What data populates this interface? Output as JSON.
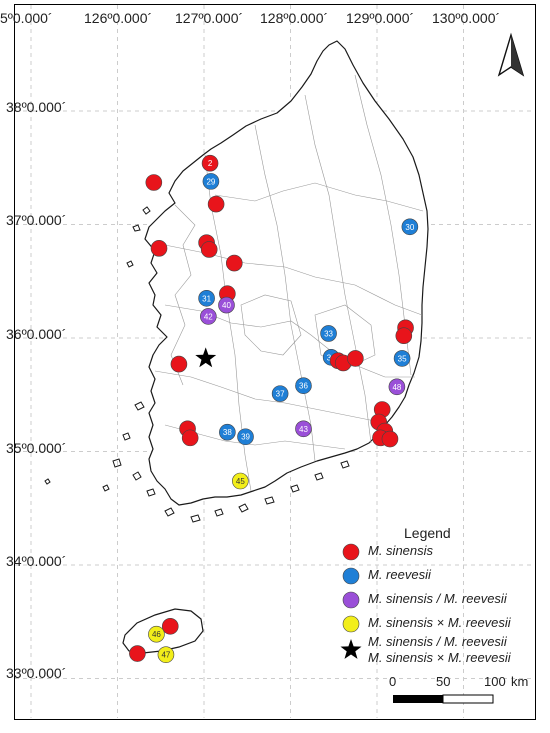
{
  "lon_labels": [
    "5º0.000´",
    "126º0.000´",
    "127º0.000´",
    "128º0.000´",
    "129º0.000´",
    "130º0.000´"
  ],
  "lat_labels": [
    "38º0.000´",
    "37º0.000´",
    "36º0.000´",
    "35º0.000´",
    "34º0.000´",
    "33º0.000´"
  ],
  "legend": {
    "title": "Legend",
    "items": [
      {
        "label": "M. sinensis",
        "color": "#e8141b",
        "symbol": "circle"
      },
      {
        "label": "M. reevesii",
        "color": "#1f7fd6",
        "symbol": "circle"
      },
      {
        "label": "M. sinensis / M. reevesii",
        "color": "#9a4fd8",
        "symbol": "circle"
      },
      {
        "label": "M. sinensis × M. reevesii",
        "color": "#f2ee1a",
        "symbol": "circle"
      },
      {
        "label": "M. sinensis / M. reevesii",
        "label2": "M. sinensis × M. reevesii",
        "color": "#000000",
        "symbol": "star"
      }
    ]
  },
  "scale_bar": {
    "labels": [
      "0",
      "50",
      "100"
    ],
    "unit": "km"
  },
  "north_arrow": "north-arrow-icon",
  "sites": [
    {
      "label": "2",
      "type": "sinensis",
      "lon": 127.07,
      "lat": 37.54
    },
    {
      "label": "",
      "type": "sinensis",
      "lon": 126.42,
      "lat": 37.37
    },
    {
      "label": "29",
      "type": "reevesii",
      "lon": 127.08,
      "lat": 37.38
    },
    {
      "label": "",
      "type": "sinensis",
      "lon": 127.14,
      "lat": 37.18
    },
    {
      "label": "",
      "type": "sinensis",
      "lon": 126.48,
      "lat": 36.79
    },
    {
      "label": "",
      "type": "sinensis",
      "lon": 127.03,
      "lat": 36.84
    },
    {
      "label": "",
      "type": "sinensis",
      "lon": 127.06,
      "lat": 36.78
    },
    {
      "label": "",
      "type": "sinensis",
      "lon": 127.35,
      "lat": 36.66
    },
    {
      "label": "",
      "type": "sinensis",
      "lon": 127.27,
      "lat": 36.39
    },
    {
      "label": "31",
      "type": "reevesii",
      "lon": 127.03,
      "lat": 36.35
    },
    {
      "label": "40",
      "type": "sinensis_reevesii",
      "lon": 127.26,
      "lat": 36.29
    },
    {
      "label": "42",
      "type": "sinensis_reevesii",
      "lon": 127.05,
      "lat": 36.19
    },
    {
      "label": "30",
      "type": "reevesii",
      "lon": 129.38,
      "lat": 36.98
    },
    {
      "label": "",
      "type": "sinensis",
      "lon": 129.33,
      "lat": 36.09
    },
    {
      "label": "",
      "type": "sinensis",
      "lon": 129.31,
      "lat": 36.02
    },
    {
      "label": "33",
      "type": "reevesii",
      "lon": 128.44,
      "lat": 36.04
    },
    {
      "label": "34",
      "type": "reevesii",
      "lon": 128.47,
      "lat": 35.83
    },
    {
      "label": "",
      "type": "sinensis",
      "lon": 128.55,
      "lat": 35.8
    },
    {
      "label": "",
      "type": "sinensis",
      "lon": 128.61,
      "lat": 35.78
    },
    {
      "label": "",
      "type": "sinensis",
      "lon": 128.75,
      "lat": 35.82
    },
    {
      "label": "35",
      "type": "reevesii",
      "lon": 129.29,
      "lat": 35.82
    },
    {
      "label": "",
      "type": "sinensis",
      "lon": 126.71,
      "lat": 35.77
    },
    {
      "label": "36",
      "type": "reevesii",
      "lon": 128.15,
      "lat": 35.58
    },
    {
      "label": "37",
      "type": "reevesii",
      "lon": 127.88,
      "lat": 35.51
    },
    {
      "label": "48",
      "type": "sinensis_reevesii",
      "lon": 129.23,
      "lat": 35.57
    },
    {
      "label": "",
      "type": "sinensis",
      "lon": 129.06,
      "lat": 35.37
    },
    {
      "label": "",
      "type": "sinensis",
      "lon": 129.02,
      "lat": 35.26
    },
    {
      "label": "",
      "type": "sinensis",
      "lon": 129.09,
      "lat": 35.18
    },
    {
      "label": "",
      "type": "sinensis",
      "lon": 129.04,
      "lat": 35.12
    },
    {
      "label": "",
      "type": "sinensis",
      "lon": 129.15,
      "lat": 35.11
    },
    {
      "label": "",
      "type": "sinensis",
      "lon": 126.81,
      "lat": 35.2
    },
    {
      "label": "",
      "type": "sinensis",
      "lon": 126.84,
      "lat": 35.12
    },
    {
      "label": "38",
      "type": "reevesii",
      "lon": 127.27,
      "lat": 35.17
    },
    {
      "label": "39",
      "type": "reevesii",
      "lon": 127.48,
      "lat": 35.13
    },
    {
      "label": "43",
      "type": "sinensis_reevesii",
      "lon": 128.15,
      "lat": 35.2
    },
    {
      "label": "45",
      "type": "hybrid",
      "lon": 127.42,
      "lat": 34.74
    },
    {
      "label": "",
      "type": "sinensis",
      "lon": 126.61,
      "lat": 33.46
    },
    {
      "label": "46",
      "type": "hybrid",
      "lon": 126.45,
      "lat": 33.39
    },
    {
      "label": "",
      "type": "sinensis",
      "lon": 126.23,
      "lat": 33.22
    },
    {
      "label": "47",
      "type": "hybrid",
      "lon": 126.56,
      "lat": 33.21
    }
  ],
  "star_site": {
    "lon": 127.02,
    "lat": 35.82
  }
}
